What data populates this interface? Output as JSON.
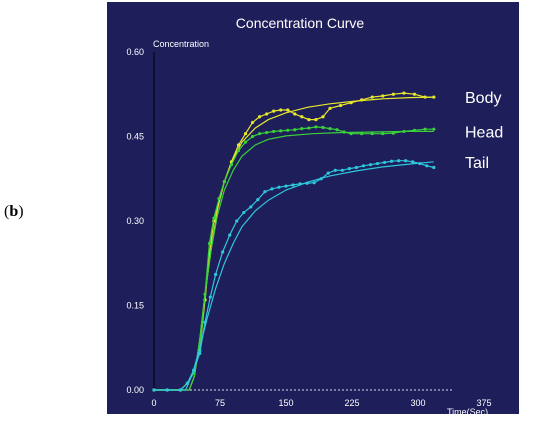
{
  "panel_label": "b",
  "chart_data": {
    "type": "line",
    "title": "Concentration Curve",
    "ylabel": "Concentration",
    "xlabel": "Time(Sec)",
    "xlim": [
      0,
      375
    ],
    "ylim": [
      0,
      0.6
    ],
    "x_ticks": [
      0,
      75,
      150,
      225,
      300,
      375
    ],
    "x_tick_labels": [
      "0",
      "75",
      "150",
      "225",
      "300",
      "375"
    ],
    "y_ticks": [
      0,
      0.15,
      0.3,
      0.45,
      0.6
    ],
    "y_tick_labels": [
      "0.00",
      "0.15",
      "0.30",
      "0.45",
      "0.60"
    ],
    "grid": false,
    "background": "#1e1e5a",
    "series": [
      {
        "name": "Body",
        "color": "#e8e82a",
        "measured": [
          [
            0,
            0
          ],
          [
            15,
            0
          ],
          [
            30,
            0
          ],
          [
            38,
            0.012
          ],
          [
            45,
            0.03
          ],
          [
            52,
            0.07
          ],
          [
            58,
            0.16
          ],
          [
            63,
            0.24
          ],
          [
            68,
            0.3
          ],
          [
            74,
            0.34
          ],
          [
            80,
            0.37
          ],
          [
            88,
            0.405
          ],
          [
            96,
            0.435
          ],
          [
            104,
            0.455
          ],
          [
            112,
            0.475
          ],
          [
            120,
            0.485
          ],
          [
            128,
            0.49
          ],
          [
            136,
            0.495
          ],
          [
            144,
            0.497
          ],
          [
            152,
            0.497
          ],
          [
            160,
            0.49
          ],
          [
            168,
            0.485
          ],
          [
            176,
            0.48
          ],
          [
            184,
            0.48
          ],
          [
            192,
            0.485
          ],
          [
            200,
            0.5
          ],
          [
            212,
            0.505
          ],
          [
            224,
            0.51
          ],
          [
            236,
            0.515
          ],
          [
            248,
            0.52
          ],
          [
            260,
            0.522
          ],
          [
            272,
            0.525
          ],
          [
            284,
            0.527
          ],
          [
            296,
            0.525
          ],
          [
            308,
            0.52
          ],
          [
            318,
            0.52
          ]
        ],
        "fit": [
          [
            0,
            0
          ],
          [
            40,
            0
          ],
          [
            46,
            0.025
          ],
          [
            52,
            0.09
          ],
          [
            58,
            0.17
          ],
          [
            65,
            0.25
          ],
          [
            72,
            0.32
          ],
          [
            80,
            0.37
          ],
          [
            90,
            0.41
          ],
          [
            100,
            0.44
          ],
          [
            115,
            0.465
          ],
          [
            130,
            0.48
          ],
          [
            150,
            0.492
          ],
          [
            175,
            0.502
          ],
          [
            200,
            0.508
          ],
          [
            230,
            0.513
          ],
          [
            260,
            0.517
          ],
          [
            290,
            0.519
          ],
          [
            318,
            0.52
          ]
        ]
      },
      {
        "name": "Head",
        "color": "#39d039",
        "measured": [
          [
            0,
            0
          ],
          [
            15,
            0
          ],
          [
            30,
            0
          ],
          [
            38,
            0.012
          ],
          [
            45,
            0.03
          ],
          [
            52,
            0.07
          ],
          [
            58,
            0.17
          ],
          [
            63,
            0.26
          ],
          [
            68,
            0.305
          ],
          [
            74,
            0.34
          ],
          [
            80,
            0.37
          ],
          [
            88,
            0.4
          ],
          [
            96,
            0.425
          ],
          [
            104,
            0.44
          ],
          [
            112,
            0.45
          ],
          [
            120,
            0.455
          ],
          [
            128,
            0.457
          ],
          [
            136,
            0.459
          ],
          [
            144,
            0.46
          ],
          [
            152,
            0.461
          ],
          [
            160,
            0.462
          ],
          [
            168,
            0.464
          ],
          [
            176,
            0.465
          ],
          [
            184,
            0.467
          ],
          [
            192,
            0.466
          ],
          [
            200,
            0.464
          ],
          [
            208,
            0.462
          ],
          [
            216,
            0.458
          ],
          [
            224,
            0.455
          ],
          [
            236,
            0.455
          ],
          [
            248,
            0.455
          ],
          [
            260,
            0.455
          ],
          [
            272,
            0.456
          ],
          [
            284,
            0.459
          ],
          [
            296,
            0.461
          ],
          [
            308,
            0.463
          ],
          [
            318,
            0.463
          ]
        ],
        "fit": [
          [
            0,
            0
          ],
          [
            40,
            0
          ],
          [
            46,
            0.025
          ],
          [
            52,
            0.09
          ],
          [
            58,
            0.17
          ],
          [
            65,
            0.25
          ],
          [
            72,
            0.31
          ],
          [
            80,
            0.355
          ],
          [
            90,
            0.39
          ],
          [
            100,
            0.415
          ],
          [
            115,
            0.435
          ],
          [
            130,
            0.445
          ],
          [
            150,
            0.451
          ],
          [
            180,
            0.455
          ],
          [
            210,
            0.457
          ],
          [
            250,
            0.458
          ],
          [
            290,
            0.459
          ],
          [
            318,
            0.459
          ]
        ]
      },
      {
        "name": "Tail",
        "color": "#2ec8dc",
        "measured": [
          [
            0,
            0
          ],
          [
            15,
            0
          ],
          [
            30,
            0
          ],
          [
            38,
            0.012
          ],
          [
            45,
            0.035
          ],
          [
            52,
            0.065
          ],
          [
            58,
            0.12
          ],
          [
            64,
            0.165
          ],
          [
            70,
            0.205
          ],
          [
            78,
            0.245
          ],
          [
            86,
            0.275
          ],
          [
            94,
            0.3
          ],
          [
            102,
            0.315
          ],
          [
            110,
            0.325
          ],
          [
            118,
            0.338
          ],
          [
            126,
            0.352
          ],
          [
            134,
            0.357
          ],
          [
            142,
            0.36
          ],
          [
            150,
            0.362
          ],
          [
            158,
            0.364
          ],
          [
            166,
            0.366
          ],
          [
            174,
            0.367
          ],
          [
            182,
            0.368
          ],
          [
            190,
            0.375
          ],
          [
            198,
            0.385
          ],
          [
            206,
            0.39
          ],
          [
            214,
            0.39
          ],
          [
            222,
            0.393
          ],
          [
            230,
            0.395
          ],
          [
            238,
            0.398
          ],
          [
            246,
            0.4
          ],
          [
            254,
            0.402
          ],
          [
            262,
            0.404
          ],
          [
            270,
            0.406
          ],
          [
            278,
            0.407
          ],
          [
            286,
            0.407
          ],
          [
            294,
            0.405
          ],
          [
            302,
            0.402
          ],
          [
            310,
            0.398
          ],
          [
            318,
            0.395
          ]
        ],
        "fit": [
          [
            0,
            0
          ],
          [
            36,
            0
          ],
          [
            44,
            0.03
          ],
          [
            52,
            0.075
          ],
          [
            60,
            0.125
          ],
          [
            70,
            0.18
          ],
          [
            80,
            0.225
          ],
          [
            90,
            0.26
          ],
          [
            100,
            0.29
          ],
          [
            115,
            0.318
          ],
          [
            130,
            0.337
          ],
          [
            150,
            0.355
          ],
          [
            175,
            0.369
          ],
          [
            200,
            0.38
          ],
          [
            230,
            0.389
          ],
          [
            260,
            0.396
          ],
          [
            290,
            0.401
          ],
          [
            318,
            0.405
          ]
        ]
      }
    ]
  }
}
